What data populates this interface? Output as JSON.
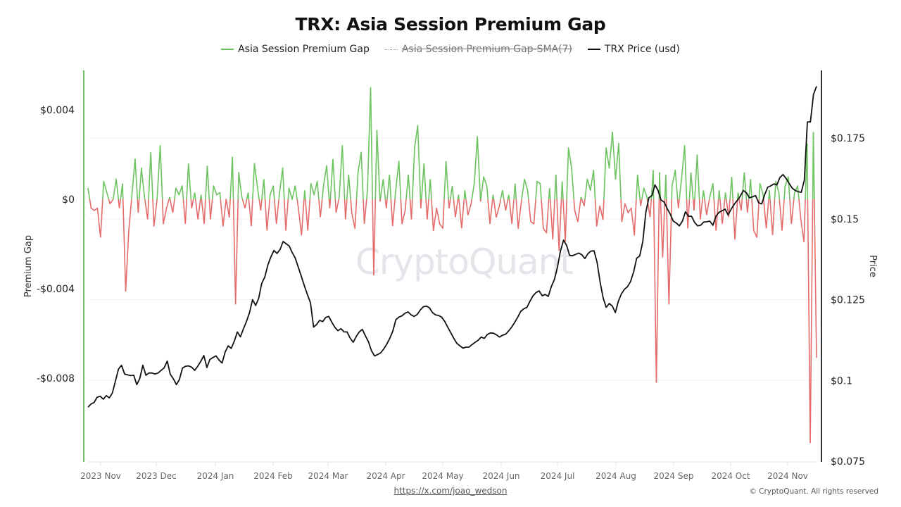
{
  "title": "TRX: Asia Session Premium Gap",
  "legend": [
    {
      "label": "Asia Session Premium Gap",
      "color": "#6cc35f",
      "hidden": false
    },
    {
      "label": "Asia Session Premium Gap-SMA(7)",
      "color": "#999999",
      "hidden": true
    },
    {
      "label": "TRX Price (usd)",
      "color": "#111111",
      "hidden": false
    }
  ],
  "watermark": "CryptoQuant",
  "footer": {
    "link": "https://x.com/joao_wedson",
    "copyright": "© CryptoQuant. All rights reserved"
  },
  "colors": {
    "positive": "#6cc35f",
    "negative": "#e56b6b",
    "price": "#111111",
    "left_axis": "#6cc35f",
    "right_axis": "#333333",
    "grid": "#f0f0f0"
  },
  "chart_data": {
    "type": "line",
    "title": "TRX: Asia Session Premium Gap",
    "xlabel": "",
    "ylabel": "Premium Gap",
    "y2label": "Price",
    "x_ticks": [
      "2023 Nov",
      "2023 Dec",
      "2024 Jan",
      "2024 Feb",
      "2024 Mar",
      "2024 Apr",
      "2024 May",
      "2024 Jun",
      "2024 Jul",
      "2024 Aug",
      "2024 Sep",
      "2024 Oct",
      "2024 Nov"
    ],
    "y_ticks": [
      "$0.004",
      "$0",
      "-$0.004",
      "-$0.008"
    ],
    "y_values": [
      0.004,
      0,
      -0.004,
      -0.008
    ],
    "ylim": [
      -0.0117,
      0.0057
    ],
    "y2_ticks": [
      "$0.175",
      "$0.15",
      "$0.125",
      "$0.1",
      "$0.075"
    ],
    "y2_values": [
      0.175,
      0.15,
      0.125,
      0.1,
      0.075
    ],
    "y2lim": [
      0.075,
      0.196
    ],
    "grid": true,
    "legend_position": "top",
    "series": [
      {
        "name": "Asia Session Premium Gap",
        "axis": "left",
        "sampling": "approx. every 3 days, 2023-10-28 to 2024-11-24",
        "values": [
          0.0005,
          -0.0004,
          -0.0005,
          -0.0004,
          -0.0017,
          0.0008,
          0.0003,
          -0.0002,
          0.0,
          0.0009,
          -0.0004,
          0.0007,
          -0.0041,
          -0.0014,
          0.0002,
          0.0018,
          -0.0006,
          0.0014,
          0.0001,
          -0.0009,
          0.0021,
          -0.0012,
          0.0,
          0.0024,
          -0.0011,
          -0.0004,
          0.0001,
          -0.0006,
          0.0005,
          0.0002,
          0.0006,
          -0.0011,
          0.0016,
          -0.0004,
          0.0003,
          -0.0009,
          0.0002,
          -0.0011,
          0.0015,
          -0.0009,
          0.0006,
          0.0002,
          0.0003,
          -0.0012,
          0.0,
          -0.0008,
          0.0019,
          -0.0047,
          0.0012,
          0.0001,
          -0.0004,
          0.0003,
          -0.0012,
          0.0016,
          0.0005,
          -0.0005,
          0.0009,
          -0.0014,
          0.0002,
          0.0006,
          -0.0011,
          0.0003,
          0.0014,
          -0.0014,
          0.0005,
          0.0,
          0.0006,
          -0.0004,
          -0.0016,
          0.0004,
          -0.0014,
          0.0007,
          0.0002,
          0.0008,
          -0.0008,
          0.0006,
          0.0015,
          -0.0004,
          0.0018,
          -0.0006,
          0.0001,
          0.0024,
          -0.0009,
          0.0011,
          -0.0006,
          -0.0013,
          0.0012,
          0.0021,
          -0.0011,
          0.0004,
          0.005,
          -0.0034,
          0.0031,
          -0.0001,
          0.0009,
          -0.0004,
          0.0011,
          -0.0012,
          0.0004,
          0.0017,
          -0.0011,
          -0.0005,
          0.0011,
          -0.0009,
          0.0023,
          0.0033,
          -0.0004,
          0.0016,
          -0.0009,
          0.0009,
          -0.0014,
          -0.0004,
          -0.0011,
          -0.0013,
          0.0017,
          -0.0004,
          0.0006,
          -0.0008,
          0.0002,
          -0.0013,
          0.0004,
          -0.0007,
          -0.0002,
          0.0007,
          0.0028,
          -0.0001,
          0.001,
          0.0006,
          -0.0011,
          0.0002,
          -0.0008,
          -0.0003,
          0.0004,
          -0.0005,
          0.0002,
          -0.0011,
          0.0007,
          -0.0013,
          -0.0001,
          0.0009,
          0.0004,
          -0.001,
          -0.0011,
          0.0008,
          0.0007,
          -0.0013,
          -0.0015,
          0.0005,
          -0.0018,
          0.0011,
          -0.0023,
          0.0008,
          -0.0019,
          0.0023,
          0.0014,
          -0.0005,
          -0.001,
          0.0001,
          -0.0003,
          0.0009,
          0.0004,
          0.0013,
          -0.0012,
          -0.0003,
          -0.0009,
          0.0023,
          0.0014,
          0.003,
          0.0009,
          0.0025,
          -0.001,
          -0.0002,
          -0.0006,
          -0.0004,
          -0.0016,
          0.0011,
          -0.0003,
          0.0005,
          0.0001,
          -0.0008,
          0.0013,
          -0.0082,
          0.0012,
          -0.0026,
          0.0011,
          -0.0047,
          0.0006,
          0.0013,
          -0.0004,
          0.0009,
          0.0024,
          -0.0013,
          0.0012,
          -0.0005,
          0.002,
          -0.0009,
          0.0004,
          -0.0007,
          0.0001,
          0.0007,
          -0.0014,
          0.0004,
          -0.0011,
          0.0003,
          -0.0008,
          0.001,
          -0.0018,
          0.0003,
          -0.0005,
          0.0012,
          -0.0006,
          0.0009,
          -0.0014,
          -0.0017,
          0.0007,
          0.0002,
          -0.0013,
          0.0004,
          -0.0016,
          0.0008,
          0.0003,
          -0.0014,
          0.0006,
          0.001,
          -0.0011,
          0.0003,
          0.0006,
          -0.0009,
          -0.0019,
          0.0025,
          -0.0109,
          0.003,
          -0.0071
        ]
      },
      {
        "name": "TRX Price (usd)",
        "axis": "right",
        "sampling": "approx. every 3 days, 2023-10-28 to 2024-11-24",
        "values": [
          0.0917,
          0.0927,
          0.0932,
          0.0948,
          0.0951,
          0.0942,
          0.0953,
          0.0946,
          0.0961,
          0.0998,
          0.1035,
          0.1047,
          0.102,
          0.1017,
          0.1015,
          0.1016,
          0.0987,
          0.1006,
          0.1047,
          0.1016,
          0.1023,
          0.1023,
          0.102,
          0.1023,
          0.1031,
          0.1039,
          0.106,
          0.1019,
          0.1005,
          0.0987,
          0.1003,
          0.1038,
          0.1044,
          0.1045,
          0.1041,
          0.1031,
          0.1044,
          0.1059,
          0.1077,
          0.104,
          0.1065,
          0.1071,
          0.1076,
          0.1063,
          0.1054,
          0.1088,
          0.1107,
          0.1099,
          0.1122,
          0.115,
          0.1135,
          0.116,
          0.1183,
          0.121,
          0.125,
          0.1232,
          0.1254,
          0.13,
          0.132,
          0.1357,
          0.1382,
          0.1402,
          0.1393,
          0.1405,
          0.143,
          0.1423,
          0.1416,
          0.1396,
          0.1378,
          0.135,
          0.1322,
          0.1292,
          0.1265,
          0.124,
          0.1165,
          0.1173,
          0.1186,
          0.1182,
          0.1195,
          0.1198,
          0.118,
          0.1164,
          0.1154,
          0.116,
          0.115,
          0.115,
          0.1131,
          0.1118,
          0.1136,
          0.115,
          0.1158,
          0.1138,
          0.112,
          0.1092,
          0.1076,
          0.108,
          0.1085,
          0.1097,
          0.1112,
          0.113,
          0.1153,
          0.1188,
          0.1196,
          0.12,
          0.1208,
          0.1212,
          0.1203,
          0.1198,
          0.1204,
          0.1218,
          0.1228,
          0.123,
          0.1225,
          0.121,
          0.1203,
          0.1201,
          0.1196,
          0.1183,
          0.1165,
          0.1148,
          0.113,
          0.1115,
          0.1107,
          0.11,
          0.1103,
          0.1103,
          0.1111,
          0.1118,
          0.1124,
          0.1134,
          0.113,
          0.1142,
          0.1147,
          0.1146,
          0.1141,
          0.1134,
          0.114,
          0.1143,
          0.1153,
          0.1165,
          0.118,
          0.1196,
          0.1214,
          0.1222,
          0.1226,
          0.1245,
          0.1262,
          0.1272,
          0.1277,
          0.1262,
          0.1266,
          0.126,
          0.129,
          0.1312,
          0.135,
          0.14,
          0.1434,
          0.1418,
          0.1387,
          0.1386,
          0.139,
          0.1394,
          0.1389,
          0.1377,
          0.1392,
          0.14,
          0.1401,
          0.1366,
          0.1305,
          0.1255,
          0.1226,
          0.1238,
          0.123,
          0.121,
          0.1245,
          0.1268,
          0.1282,
          0.129,
          0.1306,
          0.1336,
          0.1378,
          0.1385,
          0.143,
          0.152,
          0.1565,
          0.1572,
          0.1605,
          0.1588,
          0.1558,
          0.1552,
          0.1532,
          0.1515,
          0.1493,
          0.1487,
          0.1478,
          0.1493,
          0.1522,
          0.1508,
          0.1508,
          0.1489,
          0.1478,
          0.148,
          0.149,
          0.1491,
          0.1493,
          0.148,
          0.1508,
          0.152,
          0.1525,
          0.153,
          0.1512,
          0.153,
          0.1545,
          0.1557,
          0.157,
          0.1588,
          0.158,
          0.1565,
          0.1568,
          0.1572,
          0.155,
          0.1546,
          0.1575,
          0.1598,
          0.1602,
          0.1608,
          0.1605,
          0.1628,
          0.1637,
          0.1625,
          0.161,
          0.1595,
          0.1588,
          0.1584,
          0.1582,
          0.162,
          0.18,
          0.18,
          0.1885,
          0.191
        ]
      }
    ]
  },
  "axes": {
    "left_title": "Premium Gap",
    "right_title": "Price"
  }
}
